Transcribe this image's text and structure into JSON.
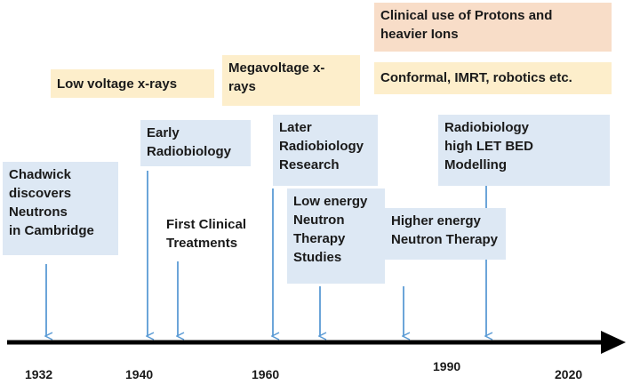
{
  "colors": {
    "tan_box": "#fdeecb",
    "peach_box": "#f8ddc8",
    "blue_box": "#dde8f4",
    "arrow": "#5b9bd5",
    "axis": "#000000"
  },
  "labels": {
    "protons_ions": "Clinical use of Protons and\nheavier Ions",
    "low_voltage": "Low voltage x-rays",
    "megavoltage": "Megavoltage x-\nrays",
    "conformal": "Conformal, IMRT, robotics etc.",
    "chadwick": "Chadwick\ndiscovers\nNeutrons\nin Cambridge",
    "early_radiobiology": "Early\nRadiobiology",
    "first_clinical": "First Clinical\nTreatments",
    "later_radiobiology": "Later\nRadiobiology\nResearch",
    "low_energy_neutron": "Low energy\nNeutron\nTherapy\nStudies",
    "higher_energy_neutron": "Higher energy\nNeutron Therapy",
    "radiobiology_let": "Radiobiology\nhigh LET BED\nModelling"
  },
  "years": [
    "1932",
    "1940",
    "1960",
    "1990",
    "2020"
  ]
}
